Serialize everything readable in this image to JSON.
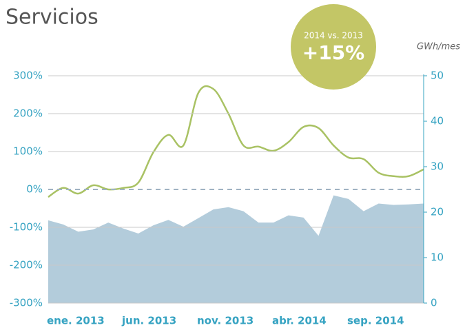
{
  "chart_data": {
    "type": "line",
    "title": "Servicios",
    "annotation": {
      "label": "2014 vs. 2013",
      "value": "+15%",
      "color": "#c3c666"
    },
    "y2_label": "GWh/mes",
    "categories": [
      "ene. 2013",
      null,
      null,
      null,
      null,
      "jun. 2013",
      null,
      null,
      null,
      null,
      "nov. 2013",
      null,
      null,
      null,
      null,
      "abr. 2014",
      null,
      null,
      null,
      null,
      "sep. 2014",
      null,
      null,
      null,
      null,
      null
    ],
    "series": [
      {
        "name": "GWh/mes",
        "type": "area",
        "axis": "y2",
        "color": "#b3ccdb",
        "values": [
          18.2,
          17.3,
          15.7,
          16.2,
          17.7,
          16.4,
          15.3,
          17.1,
          18.3,
          16.8,
          18.7,
          20.6,
          21.1,
          20.2,
          17.7,
          17.7,
          19.3,
          18.8,
          14.8,
          23.7,
          22.9,
          20.2,
          21.9,
          21.6,
          21.7,
          21.9
        ]
      },
      {
        "name": "2014 vs. 2013",
        "type": "line",
        "axis": "y",
        "color": "#a9c264",
        "values": [
          -20,
          4,
          -11,
          11,
          0,
          4,
          18,
          98,
          144,
          116,
          255,
          265,
          200,
          116,
          113,
          102,
          125,
          165,
          162,
          116,
          84,
          80,
          44,
          35,
          35,
          53
        ]
      }
    ],
    "ylim": [
      -300,
      300
    ],
    "yticks": [
      {
        "value": -300,
        "label": "-300%"
      },
      {
        "value": -200,
        "label": "-200%"
      },
      {
        "value": -100,
        "label": "-100%"
      },
      {
        "value": 0,
        "label": "0%"
      },
      {
        "value": 100,
        "label": "100%"
      },
      {
        "value": 200,
        "label": "200%"
      },
      {
        "value": 300,
        "label": "300%"
      }
    ],
    "y2lim": [
      0,
      50
    ],
    "y2ticks": [
      0,
      10,
      20,
      30,
      40,
      50
    ],
    "grid": true
  }
}
